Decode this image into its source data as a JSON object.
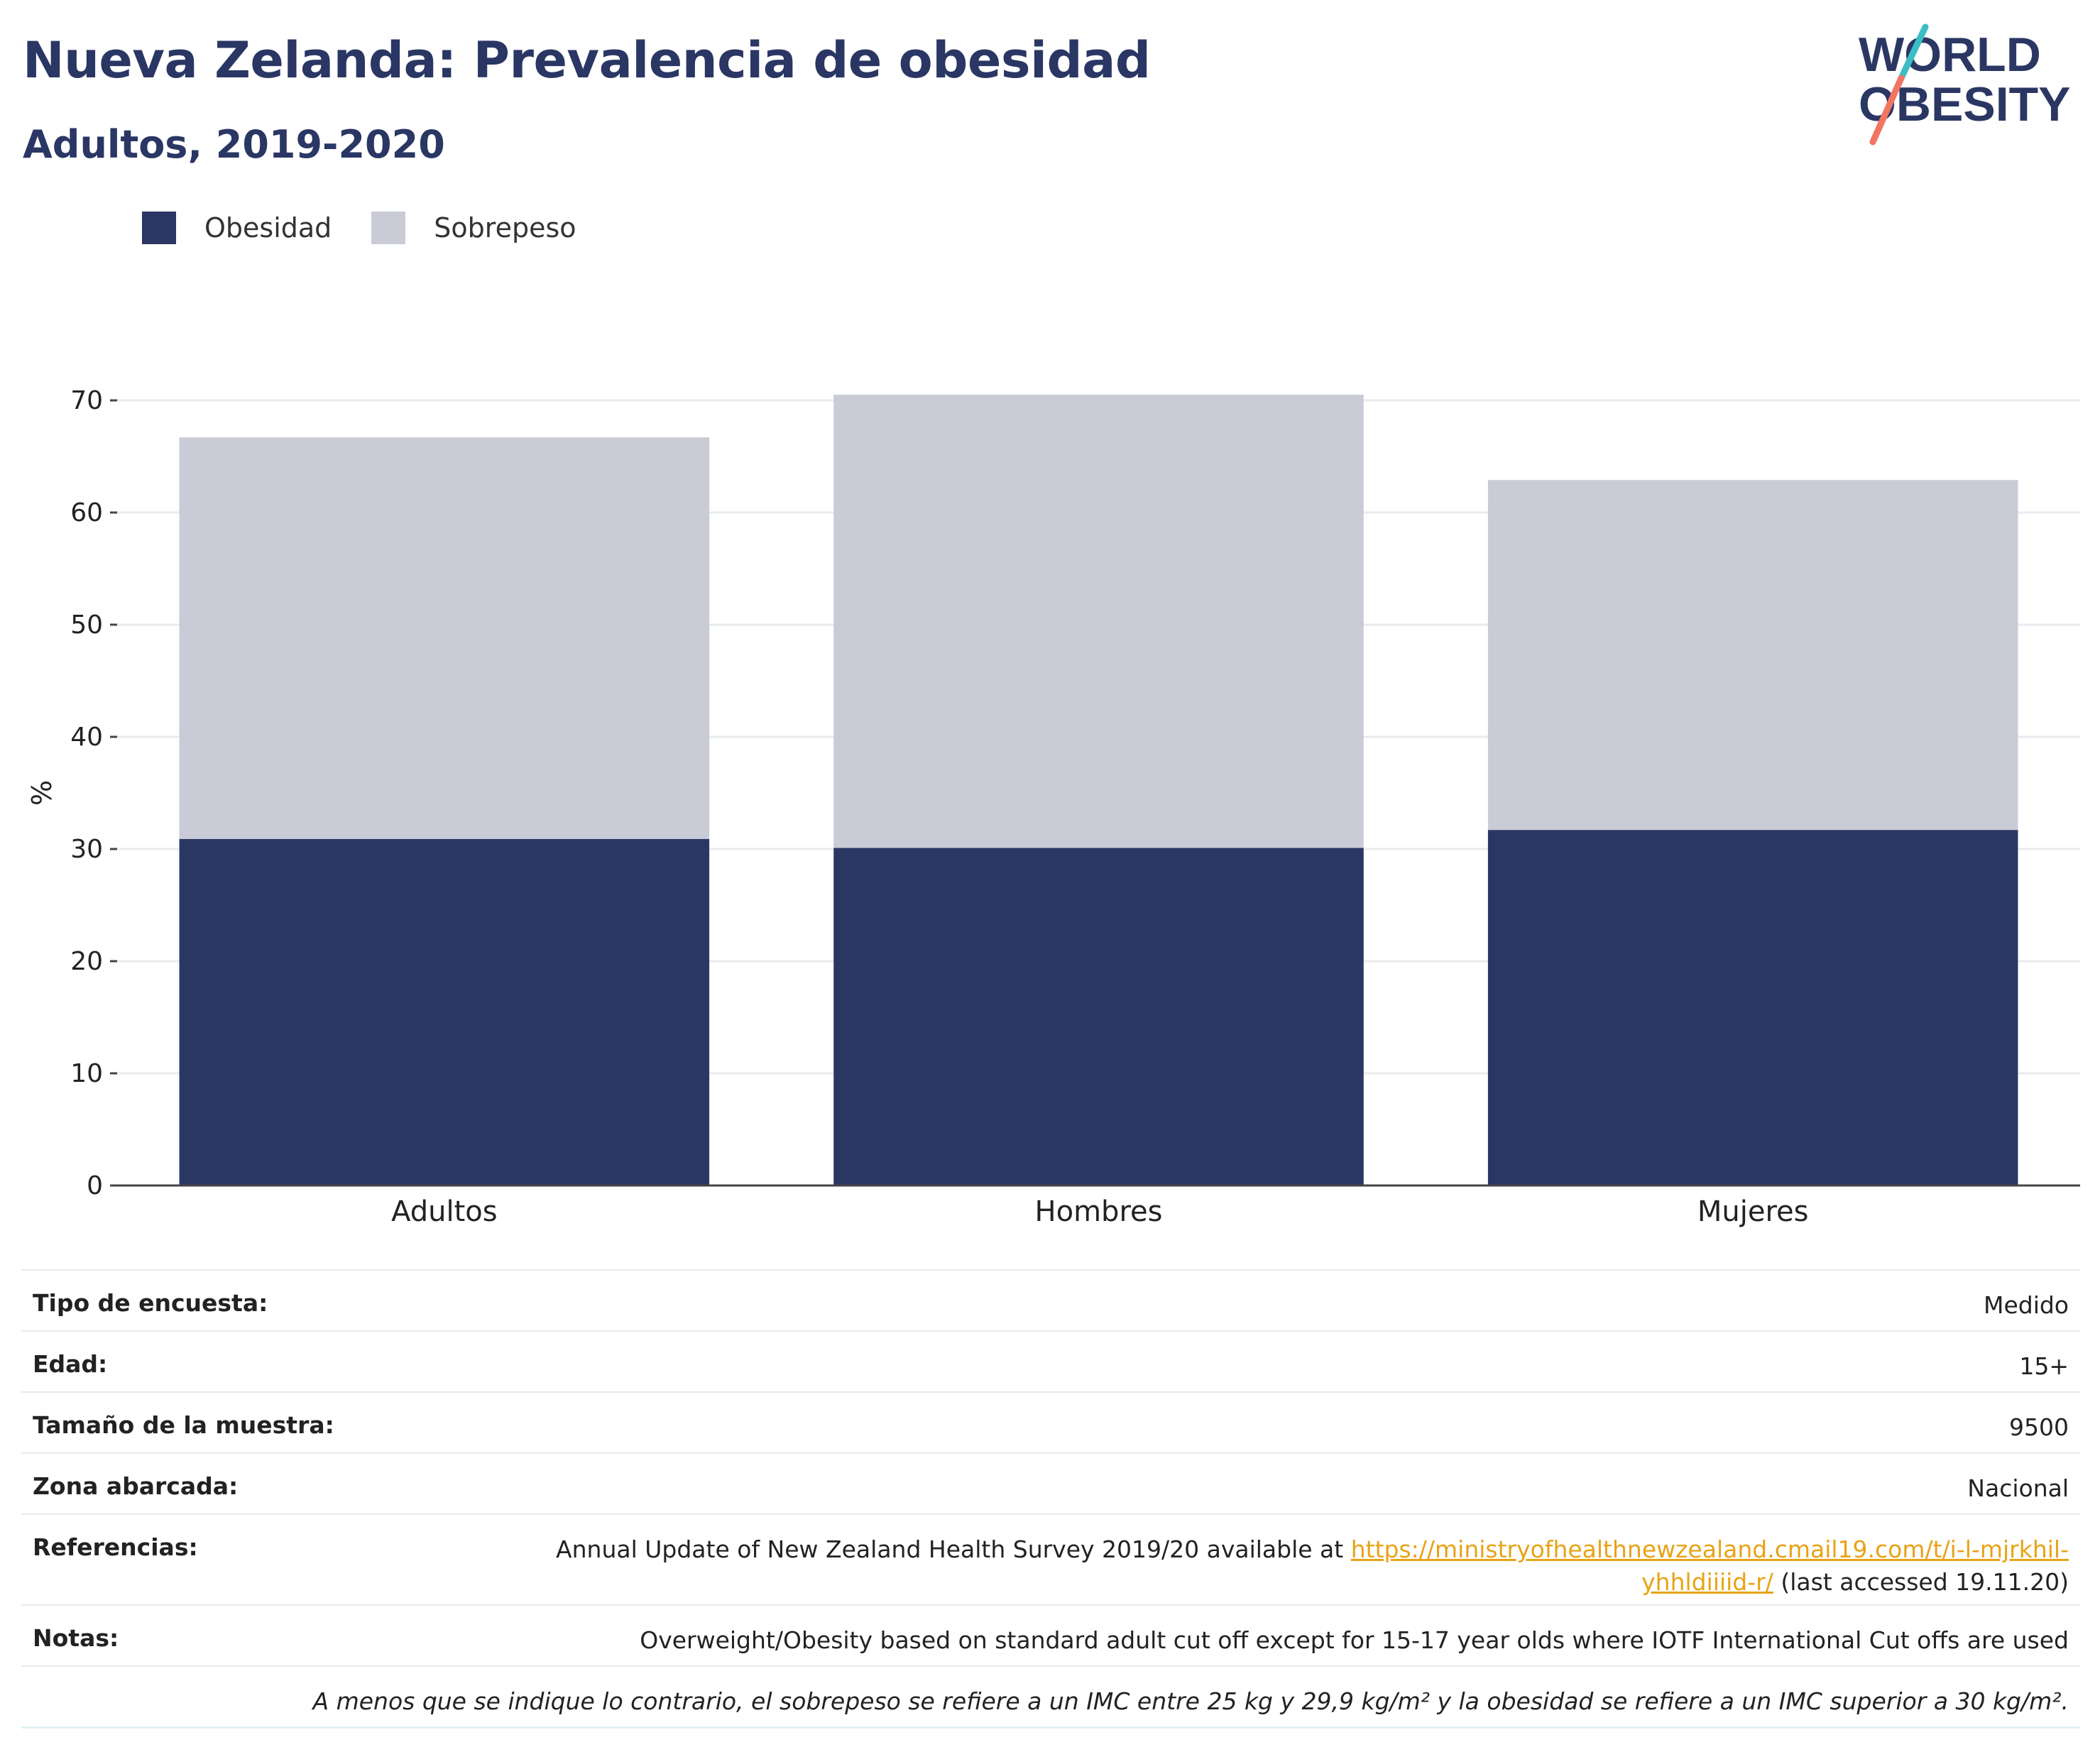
{
  "header": {
    "title": "Nueva Zelanda: Prevalencia de obesidad",
    "subtitle": "Adultos, 2019-2020"
  },
  "logo": {
    "line1": "WORLD",
    "line2": "OBESITY"
  },
  "legend": [
    {
      "label": "Obesidad",
      "color": "#2b3763"
    },
    {
      "label": "Sobrepeso",
      "color": "#c9cbd7"
    }
  ],
  "chart_data": {
    "type": "bar",
    "stacked": true,
    "categories": [
      "Adultos",
      "Hombres",
      "Mujeres"
    ],
    "series": [
      {
        "name": "Obesidad",
        "color": "#2b3763",
        "values": [
          30.9,
          30.1,
          31.7
        ]
      },
      {
        "name": "Sobrepeso",
        "color": "#c9cbd7",
        "values": [
          35.8,
          40.4,
          31.2
        ]
      }
    ],
    "ylabel": "%",
    "ylim": [
      0,
      70
    ],
    "yticks": [
      0,
      10,
      20,
      30,
      40,
      50,
      60,
      70
    ],
    "grid": true,
    "legend_position": "top-left"
  },
  "info": {
    "survey_type": {
      "label": "Tipo de encuesta:",
      "value": "Medido"
    },
    "age": {
      "label": "Edad:",
      "value": "15+"
    },
    "sample_size": {
      "label": "Tamaño de la muestra:",
      "value": "9500"
    },
    "area": {
      "label": "Zona abarcada:",
      "value": "Nacional"
    },
    "references": {
      "label": "Referencias:",
      "text_before": "Annual Update of New Zealand Health Survey 2019/20 available at",
      "link_part1": "https://ministryofhealthnewzealand.cmail19.com/t/i-l-mjrkhil-",
      "link_part2": "yhhldiiiid-r/",
      "text_after": "(last accessed 19.11.20)"
    },
    "notes": {
      "label": "Notas:",
      "value": "Overweight/Obesity based on standard adult cut off except for 15-17 year olds where IOTF International Cut offs are used"
    },
    "footnote": "A menos que se indique lo contrario, el sobrepeso se refiere a un IMC entre 25 kg y 29,9 kg/m² y la obesidad se refiere a un IMC superior a 30 kg/m²."
  }
}
